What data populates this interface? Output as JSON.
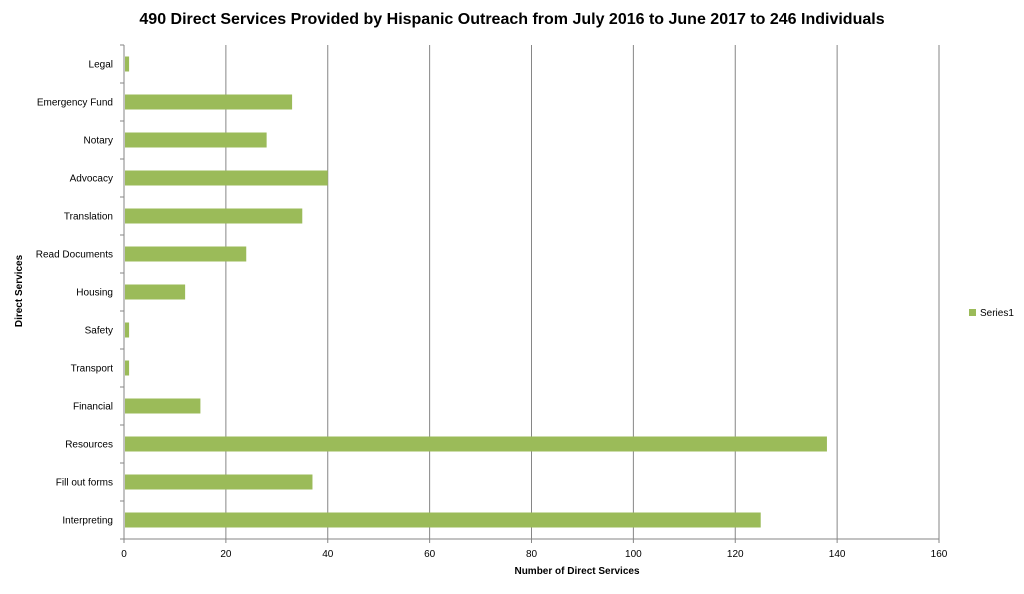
{
  "chart_data": {
    "type": "bar",
    "orientation": "horizontal",
    "title": "490 Direct Services Provided by Hispanic  Outreach  from July 2016 to June 2017 to 246 Individuals",
    "xlabel": "Number of Direct Services",
    "ylabel": "Direct Services",
    "xlim": [
      0,
      160
    ],
    "xticks": [
      0,
      20,
      40,
      60,
      80,
      100,
      120,
      140,
      160
    ],
    "grid": "vertical",
    "legend_position": "right",
    "bar_color": "#9bbb59",
    "categories": [
      "Interpreting",
      "Fill out forms",
      "Resources",
      "Financial",
      "Transport",
      "Safety",
      "Housing",
      "Read Documents",
      "Translation",
      "Advocacy",
      "Notary",
      "Emergency Fund",
      "Legal"
    ],
    "series": [
      {
        "name": "Series1",
        "values": [
          125,
          37,
          138,
          15,
          1,
          1,
          12,
          24,
          35,
          40,
          28,
          33,
          1
        ]
      }
    ]
  }
}
